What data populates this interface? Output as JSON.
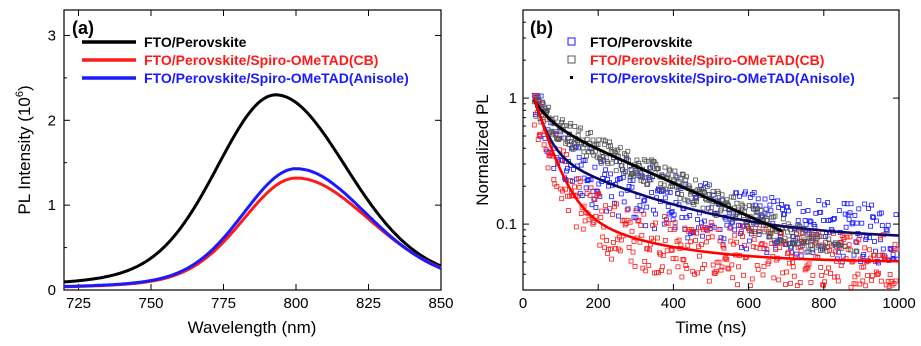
{
  "chart_data": [
    {
      "type": "line",
      "panel_label": "(a)",
      "xlabel": "Wavelength (nm)",
      "ylabel_main": "PL Intensity (10",
      "ylabel_exp": "6",
      "ylabel_close": ")",
      "xlim": [
        720,
        850
      ],
      "ylim": [
        0,
        3.3
      ],
      "xticks": [
        725,
        750,
        775,
        800,
        825,
        850
      ],
      "yticks": [
        0,
        1,
        2,
        3
      ],
      "legend_position": "top-left",
      "series": [
        {
          "name": "FTO/Perovskite",
          "color": "#000000",
          "peak_x": 793,
          "peak_y": 2.3,
          "sigma_left": 20,
          "sigma_right": 24,
          "baseline": 0.0
        },
        {
          "name": "FTO/Perovskite/Spiro-OMeTAD(CB)",
          "color": "#ff1a1a",
          "peak_x": 800,
          "peak_y": 1.32,
          "sigma_left": 18,
          "sigma_right": 25,
          "baseline": 0.0
        },
        {
          "name": "FTO/Perovskite/Spiro-OMeTAD(Anisole)",
          "color": "#1a1aff",
          "peak_x": 800,
          "peak_y": 1.43,
          "sigma_left": 18,
          "sigma_right": 24,
          "baseline": 0.0
        }
      ]
    },
    {
      "type": "scatter",
      "panel_label": "(b)",
      "xlabel": "Time (ns)",
      "ylabel": "Normalized PL",
      "xlim": [
        0,
        1000
      ],
      "ylim": [
        0.03,
        5
      ],
      "yscale": "log",
      "xticks": [
        0,
        200,
        400,
        600,
        800,
        1000
      ],
      "yticks": [
        0.1,
        1
      ],
      "ytick_labels": [
        "0.1",
        "1"
      ],
      "legend_position": "top-right",
      "series": [
        {
          "name": "FTO/Perovskite",
          "color": "#1a1aff",
          "marker": "open-square",
          "t0": 30,
          "a1": 0.6,
          "tau1": 30,
          "a2": 0.3,
          "tau2": 250,
          "floor": 0.075,
          "fit_color": "#0a0a66"
        },
        {
          "name": "FTO/Perovskite/Spiro-OMeTAD(CB)",
          "color": "#555555",
          "marker": "open-square",
          "t0": 30,
          "a1": 0.3,
          "tau1": 40,
          "a2": 0.65,
          "tau2": 330,
          "floor": 0.0,
          "fit_color": "#000000",
          "fit_end": 690
        },
        {
          "name": "FTO/Perovskite/Spiro-OMeTAD(Anisole)",
          "color": "#ff1a1a",
          "marker": "open-square",
          "t0": 30,
          "a1": 0.85,
          "tau1": 40,
          "a2": 0.1,
          "tau2": 200,
          "floor": 0.05,
          "fit_color": "#ff0000"
        }
      ]
    }
  ]
}
